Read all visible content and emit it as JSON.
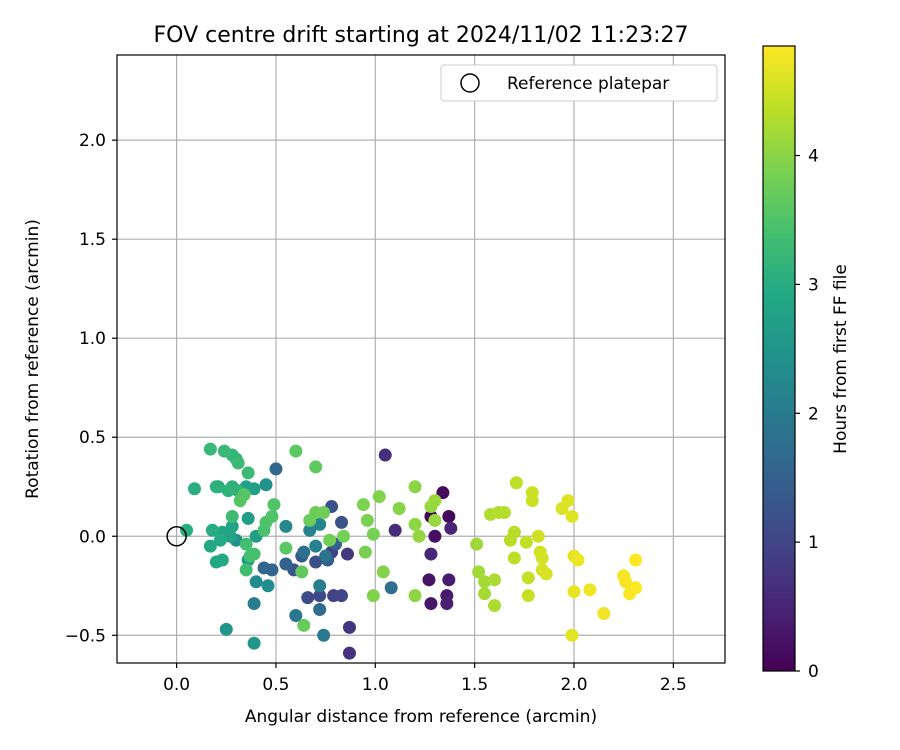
{
  "chart_data": {
    "type": "scatter",
    "title": "FOV centre drift starting at 2024/11/02 11:23:27",
    "xlabel": "Angular distance from reference (arcmin)",
    "ylabel": "Rotation from reference (arcmin)",
    "xlim": [
      -0.3,
      2.76
    ],
    "ylim": [
      -0.64,
      2.43
    ],
    "x_ticks": [
      0.0,
      0.5,
      1.0,
      1.5,
      2.0,
      2.5
    ],
    "x_tick_labels": [
      "0.0",
      "0.5",
      "1.0",
      "1.5",
      "2.0",
      "2.5"
    ],
    "y_ticks": [
      -0.5,
      0.0,
      0.5,
      1.0,
      1.5,
      2.0
    ],
    "y_tick_labels": [
      "−0.5",
      "0.0",
      "0.5",
      "1.0",
      "1.5",
      "2.0"
    ],
    "grid": true,
    "colormap": "viridis",
    "colorbar": {
      "label": "Hours from first FF file",
      "range": [
        0,
        4.85
      ],
      "ticks": [
        0,
        1,
        2,
        3,
        4
      ],
      "tick_labels": [
        "0",
        "1",
        "2",
        "3",
        "4"
      ]
    },
    "legend": {
      "position": "top-right",
      "entries": [
        "Reference platepar"
      ]
    },
    "reference_point": {
      "x": 0.0,
      "y": 0.0
    },
    "points": [
      {
        "x": 1.28,
        "y": 0.1,
        "h": 0.05
      },
      {
        "x": 1.37,
        "y": 0.1,
        "h": 0.1
      },
      {
        "x": 1.34,
        "y": 0.22,
        "h": 0.15
      },
      {
        "x": 1.3,
        "y": 0.0,
        "h": 0.2
      },
      {
        "x": 1.27,
        "y": -0.22,
        "h": 0.25
      },
      {
        "x": 1.28,
        "y": -0.34,
        "h": 0.3
      },
      {
        "x": 1.36,
        "y": -0.3,
        "h": 0.35
      },
      {
        "x": 1.37,
        "y": -0.22,
        "h": 0.4
      },
      {
        "x": 1.36,
        "y": -0.34,
        "h": 0.45
      },
      {
        "x": 1.38,
        "y": 0.04,
        "h": 0.5
      },
      {
        "x": 1.28,
        "y": -0.09,
        "h": 0.55
      },
      {
        "x": 1.1,
        "y": 0.03,
        "h": 0.6
      },
      {
        "x": 1.05,
        "y": 0.41,
        "h": 0.65
      },
      {
        "x": 0.87,
        "y": -0.59,
        "h": 0.7
      },
      {
        "x": 0.87,
        "y": -0.46,
        "h": 0.75
      },
      {
        "x": 0.86,
        "y": -0.09,
        "h": 0.8
      },
      {
        "x": 0.78,
        "y": -0.08,
        "h": 0.9
      },
      {
        "x": 0.79,
        "y": -0.3,
        "h": 0.95
      },
      {
        "x": 0.83,
        "y": -0.3,
        "h": 1.0
      },
      {
        "x": 0.72,
        "y": -0.3,
        "h": 1.05
      },
      {
        "x": 0.66,
        "y": -0.31,
        "h": 1.1
      },
      {
        "x": 0.7,
        "y": -0.13,
        "h": 1.15
      },
      {
        "x": 0.78,
        "y": 0.15,
        "h": 1.2
      },
      {
        "x": 0.83,
        "y": 0.07,
        "h": 1.25
      },
      {
        "x": 0.59,
        "y": -0.17,
        "h": 1.3
      },
      {
        "x": 0.63,
        "y": -0.1,
        "h": 1.35
      },
      {
        "x": 0.76,
        "y": -0.12,
        "h": 1.4
      },
      {
        "x": 0.8,
        "y": -0.04,
        "h": 1.45
      },
      {
        "x": 0.55,
        "y": -0.14,
        "h": 1.5
      },
      {
        "x": 0.48,
        "y": -0.17,
        "h": 1.55
      },
      {
        "x": 0.44,
        "y": -0.16,
        "h": 1.6
      },
      {
        "x": 0.5,
        "y": 0.34,
        "h": 1.65
      },
      {
        "x": 0.72,
        "y": -0.37,
        "h": 1.7
      },
      {
        "x": 1.08,
        "y": -0.26,
        "h": 1.75
      },
      {
        "x": 0.64,
        "y": -0.08,
        "h": 1.8
      },
      {
        "x": 0.75,
        "y": -0.1,
        "h": 1.85
      },
      {
        "x": 0.6,
        "y": -0.4,
        "h": 1.9
      },
      {
        "x": 0.74,
        "y": -0.5,
        "h": 1.95
      },
      {
        "x": 0.39,
        "y": -0.34,
        "h": 2.0
      },
      {
        "x": 0.72,
        "y": -0.25,
        "h": 2.05
      },
      {
        "x": 0.7,
        "y": -0.05,
        "h": 2.1
      },
      {
        "x": 0.67,
        "y": 0.03,
        "h": 2.15
      },
      {
        "x": 0.72,
        "y": 0.06,
        "h": 2.2
      },
      {
        "x": 0.55,
        "y": 0.05,
        "h": 2.25
      },
      {
        "x": 0.4,
        "y": -0.23,
        "h": 2.3
      },
      {
        "x": 0.46,
        "y": -0.25,
        "h": 2.35
      },
      {
        "x": 0.3,
        "y": -0.02,
        "h": 2.4
      },
      {
        "x": 0.45,
        "y": 0.26,
        "h": 2.45
      },
      {
        "x": 0.25,
        "y": -0.47,
        "h": 2.5
      },
      {
        "x": 0.39,
        "y": -0.54,
        "h": 2.55
      },
      {
        "x": 0.36,
        "y": -0.12,
        "h": 2.6
      },
      {
        "x": 0.36,
        "y": 0.09,
        "h": 2.65
      },
      {
        "x": 0.4,
        "y": 0.0,
        "h": 2.7
      },
      {
        "x": 0.35,
        "y": 0.25,
        "h": 2.72
      },
      {
        "x": 0.39,
        "y": 0.24,
        "h": 2.75
      },
      {
        "x": 0.27,
        "y": 0.0,
        "h": 2.8
      },
      {
        "x": 0.23,
        "y": 0.02,
        "h": 2.82
      },
      {
        "x": 0.28,
        "y": 0.05,
        "h": 2.85
      },
      {
        "x": 0.2,
        "y": -0.13,
        "h": 2.88
      },
      {
        "x": 0.23,
        "y": -0.12,
        "h": 2.9
      },
      {
        "x": 0.17,
        "y": -0.05,
        "h": 2.92
      },
      {
        "x": 0.22,
        "y": -0.02,
        "h": 2.95
      },
      {
        "x": 0.18,
        "y": 0.03,
        "h": 2.98
      },
      {
        "x": 0.05,
        "y": 0.03,
        "h": 3.0
      },
      {
        "x": 0.09,
        "y": 0.24,
        "h": 3.02
      },
      {
        "x": 0.21,
        "y": 0.25,
        "h": 3.05
      },
      {
        "x": 0.2,
        "y": 0.25,
        "h": 3.08
      },
      {
        "x": 0.26,
        "y": 0.23,
        "h": 3.1
      },
      {
        "x": 0.28,
        "y": 0.25,
        "h": 3.12
      },
      {
        "x": 0.31,
        "y": 0.23,
        "h": 3.15
      },
      {
        "x": 0.28,
        "y": 0.41,
        "h": 3.18
      },
      {
        "x": 0.3,
        "y": 0.39,
        "h": 3.2
      },
      {
        "x": 0.17,
        "y": 0.44,
        "h": 3.22
      },
      {
        "x": 0.24,
        "y": 0.43,
        "h": 3.25
      },
      {
        "x": 0.31,
        "y": 0.37,
        "h": 3.27
      },
      {
        "x": 0.36,
        "y": 0.32,
        "h": 3.3
      },
      {
        "x": 0.28,
        "y": 0.1,
        "h": 3.32
      },
      {
        "x": 0.35,
        "y": -0.17,
        "h": 3.35
      },
      {
        "x": 0.35,
        "y": -0.04,
        "h": 3.37
      },
      {
        "x": 0.37,
        "y": -0.1,
        "h": 3.4
      },
      {
        "x": 0.39,
        "y": -0.09,
        "h": 3.42
      },
      {
        "x": 0.44,
        "y": 0.03,
        "h": 3.45
      },
      {
        "x": 0.45,
        "y": 0.07,
        "h": 3.47
      },
      {
        "x": 0.48,
        "y": 0.1,
        "h": 3.5
      },
      {
        "x": 0.49,
        "y": 0.16,
        "h": 3.52
      },
      {
        "x": 0.32,
        "y": 0.18,
        "h": 3.55
      },
      {
        "x": 0.34,
        "y": 0.21,
        "h": 3.57
      },
      {
        "x": 0.55,
        "y": -0.06,
        "h": 3.6
      },
      {
        "x": 0.6,
        "y": 0.43,
        "h": 3.62
      },
      {
        "x": 0.7,
        "y": 0.35,
        "h": 3.65
      },
      {
        "x": 0.63,
        "y": -0.18,
        "h": 3.67
      },
      {
        "x": 0.64,
        "y": -0.45,
        "h": 3.7
      },
      {
        "x": 0.67,
        "y": 0.08,
        "h": 3.72
      },
      {
        "x": 0.7,
        "y": 0.12,
        "h": 3.75
      },
      {
        "x": 0.74,
        "y": 0.12,
        "h": 3.77
      },
      {
        "x": 0.77,
        "y": -0.02,
        "h": 3.8
      },
      {
        "x": 0.84,
        "y": 0.0,
        "h": 3.82
      },
      {
        "x": 0.99,
        "y": 0.01,
        "h": 3.84
      },
      {
        "x": 0.95,
        "y": -0.08,
        "h": 3.86
      },
      {
        "x": 0.96,
        "y": 0.08,
        "h": 3.88
      },
      {
        "x": 0.94,
        "y": 0.16,
        "h": 3.9
      },
      {
        "x": 0.99,
        "y": -0.3,
        "h": 3.92
      },
      {
        "x": 1.02,
        "y": 0.2,
        "h": 3.94
      },
      {
        "x": 1.04,
        "y": -0.18,
        "h": 3.96
      },
      {
        "x": 1.12,
        "y": 0.14,
        "h": 3.98
      },
      {
        "x": 1.2,
        "y": 0.25,
        "h": 4.0
      },
      {
        "x": 1.2,
        "y": -0.3,
        "h": 4.02
      },
      {
        "x": 1.2,
        "y": 0.06,
        "h": 4.04
      },
      {
        "x": 1.22,
        "y": 0.0,
        "h": 4.06
      },
      {
        "x": 1.28,
        "y": 0.15,
        "h": 4.08
      },
      {
        "x": 1.3,
        "y": 0.08,
        "h": 4.1
      },
      {
        "x": 1.3,
        "y": 0.18,
        "h": 4.12
      },
      {
        "x": 1.51,
        "y": -0.04,
        "h": 4.14
      },
      {
        "x": 1.52,
        "y": -0.18,
        "h": 4.16
      },
      {
        "x": 1.55,
        "y": -0.23,
        "h": 4.18
      },
      {
        "x": 1.55,
        "y": -0.29,
        "h": 4.2
      },
      {
        "x": 1.6,
        "y": -0.22,
        "h": 4.22
      },
      {
        "x": 1.6,
        "y": -0.35,
        "h": 4.24
      },
      {
        "x": 1.58,
        "y": 0.11,
        "h": 4.26
      },
      {
        "x": 1.62,
        "y": 0.12,
        "h": 4.28
      },
      {
        "x": 1.65,
        "y": 0.12,
        "h": 4.3
      },
      {
        "x": 1.7,
        "y": 0.02,
        "h": 4.32
      },
      {
        "x": 1.68,
        "y": -0.02,
        "h": 4.34
      },
      {
        "x": 1.7,
        "y": -0.11,
        "h": 4.36
      },
      {
        "x": 1.71,
        "y": 0.27,
        "h": 4.38
      },
      {
        "x": 1.76,
        "y": -0.03,
        "h": 4.4
      },
      {
        "x": 1.77,
        "y": -0.21,
        "h": 4.42
      },
      {
        "x": 1.77,
        "y": -0.3,
        "h": 4.44
      },
      {
        "x": 1.79,
        "y": 0.22,
        "h": 4.46
      },
      {
        "x": 1.79,
        "y": 0.18,
        "h": 4.48
      },
      {
        "x": 1.82,
        "y": 0.0,
        "h": 4.5
      },
      {
        "x": 1.83,
        "y": -0.08,
        "h": 4.52
      },
      {
        "x": 1.84,
        "y": -0.11,
        "h": 4.54
      },
      {
        "x": 1.84,
        "y": -0.17,
        "h": 4.56
      },
      {
        "x": 1.86,
        "y": -0.19,
        "h": 4.58
      },
      {
        "x": 1.94,
        "y": 0.14,
        "h": 4.6
      },
      {
        "x": 1.97,
        "y": 0.18,
        "h": 4.62
      },
      {
        "x": 1.99,
        "y": 0.1,
        "h": 4.64
      },
      {
        "x": 1.99,
        "y": -0.5,
        "h": 4.66
      },
      {
        "x": 2.0,
        "y": -0.1,
        "h": 4.68
      },
      {
        "x": 2.0,
        "y": -0.28,
        "h": 4.7
      },
      {
        "x": 2.02,
        "y": -0.12,
        "h": 4.72
      },
      {
        "x": 2.08,
        "y": -0.27,
        "h": 4.74
      },
      {
        "x": 2.15,
        "y": -0.39,
        "h": 4.76
      },
      {
        "x": 2.25,
        "y": -0.2,
        "h": 4.78
      },
      {
        "x": 2.26,
        "y": -0.23,
        "h": 4.8
      },
      {
        "x": 2.28,
        "y": -0.29,
        "h": 4.82
      },
      {
        "x": 2.31,
        "y": -0.26,
        "h": 4.83
      },
      {
        "x": 2.31,
        "y": -0.12,
        "h": 4.85
      }
    ]
  }
}
